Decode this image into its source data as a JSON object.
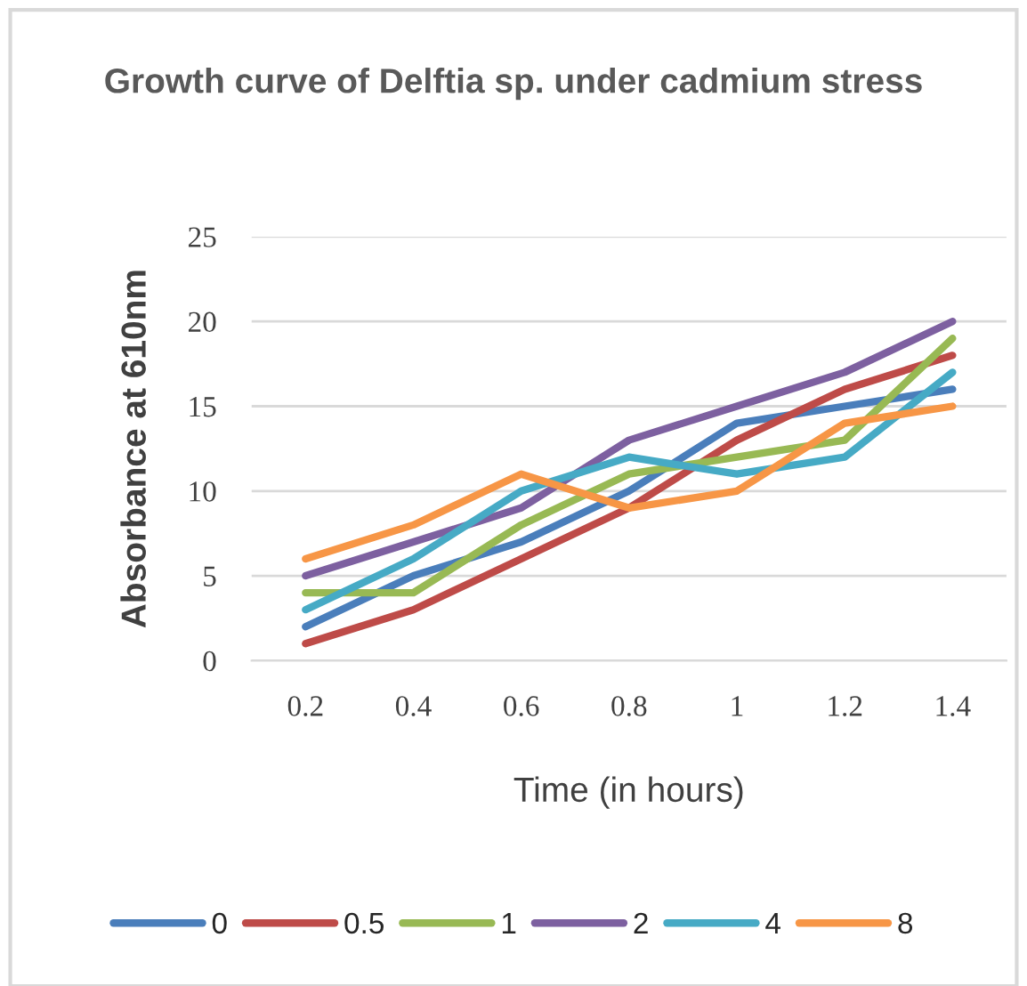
{
  "chart_data": {
    "type": "line",
    "title": "Growth curve of Delftia sp. under cadmium stress",
    "xlabel": "Time (in hours)",
    "ylabel": "Absorbance at 610nm",
    "categories": [
      "0.2",
      "0.4",
      "0.6",
      "0.8",
      "1",
      "1.2",
      "1.4"
    ],
    "series": [
      {
        "name": "0",
        "color": "#4a7ebb",
        "values": [
          2,
          5,
          7,
          10,
          14,
          15,
          16
        ]
      },
      {
        "name": "0.5",
        "color": "#be4b48",
        "values": [
          1,
          3,
          6,
          9,
          13,
          16,
          18
        ]
      },
      {
        "name": "1",
        "color": "#98b954",
        "values": [
          4,
          4,
          8,
          11,
          12,
          13,
          19
        ]
      },
      {
        "name": "2",
        "color": "#7d60a0",
        "values": [
          5,
          7,
          9,
          13,
          15,
          17,
          20
        ]
      },
      {
        "name": "4",
        "color": "#46aac5",
        "values": [
          3,
          6,
          10,
          12,
          11,
          12,
          17
        ]
      },
      {
        "name": "8",
        "color": "#f79646",
        "values": [
          6,
          8,
          11,
          9,
          10,
          14,
          15
        ]
      }
    ],
    "ylim": [
      0,
      25
    ],
    "yticks": [
      0,
      5,
      10,
      15,
      20,
      25
    ],
    "grid": "y",
    "legend": "bottom",
    "marker": "none",
    "line_style": "solid"
  }
}
